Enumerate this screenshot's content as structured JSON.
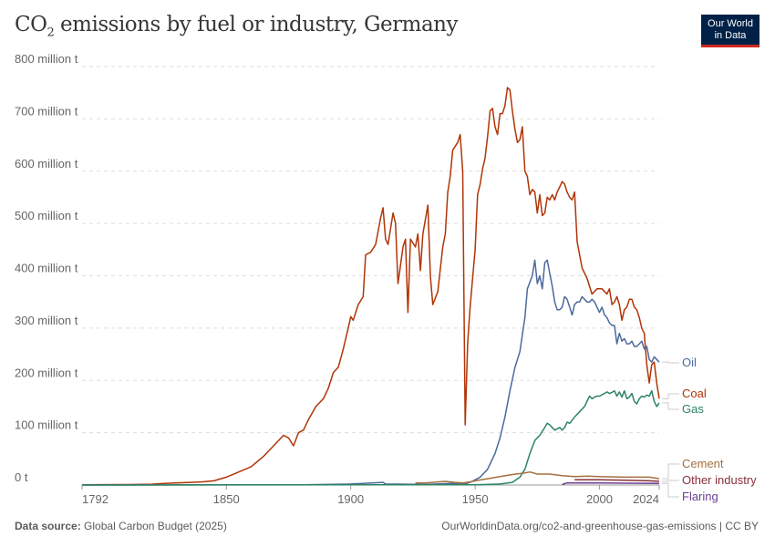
{
  "title": {
    "main": "CO",
    "sub": "2",
    "rest": " emissions by fuel or industry, Germany"
  },
  "logo": {
    "line1": "Our World",
    "line2": "in Data"
  },
  "footer": {
    "source_label": "Data source:",
    "source": "Global Carbon Budget (2025)",
    "url": "OurWorldinData.org/co2-and-greenhouse-gas-emissions | CC BY"
  },
  "chart_data": {
    "type": "line",
    "title": "CO₂ emissions by fuel or industry, Germany",
    "xlim": [
      1792,
      2024
    ],
    "ylim": [
      0,
      800
    ],
    "x_ticks": [
      1792,
      1850,
      1900,
      1950,
      2000,
      2024
    ],
    "y_ticks": [
      {
        "v": 0,
        "label": "0 t"
      },
      {
        "v": 100,
        "label": "100 million t"
      },
      {
        "v": 200,
        "label": "200 million t"
      },
      {
        "v": 300,
        "label": "300 million t"
      },
      {
        "v": 400,
        "label": "400 million t"
      },
      {
        "v": 500,
        "label": "500 million t"
      },
      {
        "v": 600,
        "label": "600 million t"
      },
      {
        "v": 700,
        "label": "700 million t"
      },
      {
        "v": 800,
        "label": "800 million t"
      }
    ],
    "grid": "horizontal dashed",
    "legend": "right, inline labels",
    "series": [
      {
        "name": "Coal",
        "color": "#b13507",
        "data": [
          [
            1792,
            0.5
          ],
          [
            1810,
            0.8
          ],
          [
            1820,
            1.5
          ],
          [
            1825,
            3
          ],
          [
            1830,
            4
          ],
          [
            1840,
            6
          ],
          [
            1845,
            8
          ],
          [
            1850,
            15
          ],
          [
            1855,
            25
          ],
          [
            1860,
            35
          ],
          [
            1865,
            55
          ],
          [
            1870,
            80
          ],
          [
            1873,
            95
          ],
          [
            1875,
            90
          ],
          [
            1877,
            75
          ],
          [
            1879,
            100
          ],
          [
            1881,
            105
          ],
          [
            1883,
            125
          ],
          [
            1886,
            150
          ],
          [
            1889,
            165
          ],
          [
            1891,
            185
          ],
          [
            1893,
            215
          ],
          [
            1895,
            225
          ],
          [
            1897,
            260
          ],
          [
            1899,
            300
          ],
          [
            1900,
            322
          ],
          [
            1901,
            315
          ],
          [
            1903,
            345
          ],
          [
            1905,
            360
          ],
          [
            1906,
            440
          ],
          [
            1908,
            445
          ],
          [
            1910,
            460
          ],
          [
            1912,
            510
          ],
          [
            1913,
            530
          ],
          [
            1914,
            470
          ],
          [
            1915,
            460
          ],
          [
            1917,
            520
          ],
          [
            1918,
            500
          ],
          [
            1919,
            385
          ],
          [
            1921,
            455
          ],
          [
            1922,
            470
          ],
          [
            1923,
            330
          ],
          [
            1924,
            470
          ],
          [
            1926,
            455
          ],
          [
            1927,
            480
          ],
          [
            1928,
            410
          ],
          [
            1929,
            480
          ],
          [
            1931,
            535
          ],
          [
            1932,
            400
          ],
          [
            1933,
            345
          ],
          [
            1935,
            370
          ],
          [
            1937,
            455
          ],
          [
            1938,
            480
          ],
          [
            1939,
            560
          ],
          [
            1940,
            590
          ],
          [
            1941,
            640
          ],
          [
            1943,
            655
          ],
          [
            1944,
            670
          ],
          [
            1945,
            600
          ],
          [
            1946,
            115
          ],
          [
            1947,
            270
          ],
          [
            1948,
            340
          ],
          [
            1950,
            450
          ],
          [
            1951,
            555
          ],
          [
            1952,
            575
          ],
          [
            1953,
            605
          ],
          [
            1954,
            625
          ],
          [
            1955,
            665
          ],
          [
            1956,
            715
          ],
          [
            1957,
            720
          ],
          [
            1958,
            685
          ],
          [
            1959,
            670
          ],
          [
            1960,
            710
          ],
          [
            1961,
            710
          ],
          [
            1962,
            725
          ],
          [
            1963,
            760
          ],
          [
            1964,
            755
          ],
          [
            1965,
            715
          ],
          [
            1966,
            680
          ],
          [
            1967,
            655
          ],
          [
            1968,
            660
          ],
          [
            1969,
            685
          ],
          [
            1970,
            600
          ],
          [
            1971,
            590
          ],
          [
            1972,
            555
          ],
          [
            1973,
            565
          ],
          [
            1974,
            560
          ],
          [
            1975,
            520
          ],
          [
            1976,
            555
          ],
          [
            1977,
            515
          ],
          [
            1978,
            520
          ],
          [
            1979,
            550
          ],
          [
            1980,
            545
          ],
          [
            1981,
            555
          ],
          [
            1982,
            545
          ],
          [
            1983,
            560
          ],
          [
            1984,
            570
          ],
          [
            1985,
            580
          ],
          [
            1986,
            575
          ],
          [
            1987,
            560
          ],
          [
            1988,
            550
          ],
          [
            1989,
            545
          ],
          [
            1990,
            560
          ],
          [
            1991,
            465
          ],
          [
            1992,
            440
          ],
          [
            1993,
            415
          ],
          [
            1994,
            405
          ],
          [
            1995,
            395
          ],
          [
            1996,
            380
          ],
          [
            1997,
            365
          ],
          [
            1998,
            370
          ],
          [
            1999,
            375
          ],
          [
            2000,
            375
          ],
          [
            2001,
            375
          ],
          [
            2002,
            370
          ],
          [
            2003,
            365
          ],
          [
            2004,
            375
          ],
          [
            2005,
            345
          ],
          [
            2006,
            350
          ],
          [
            2007,
            360
          ],
          [
            2008,
            345
          ],
          [
            2009,
            315
          ],
          [
            2010,
            335
          ],
          [
            2011,
            340
          ],
          [
            2012,
            355
          ],
          [
            2013,
            355
          ],
          [
            2014,
            340
          ],
          [
            2015,
            335
          ],
          [
            2016,
            320
          ],
          [
            2017,
            300
          ],
          [
            2018,
            290
          ],
          [
            2019,
            230
          ],
          [
            2020,
            195
          ],
          [
            2021,
            230
          ],
          [
            2022,
            235
          ],
          [
            2023,
            195
          ],
          [
            2024,
            165
          ]
        ]
      },
      {
        "name": "Oil",
        "color": "#4c6a9c",
        "data": [
          [
            1792,
            0
          ],
          [
            1880,
            0.5
          ],
          [
            1900,
            2
          ],
          [
            1905,
            3
          ],
          [
            1913,
            5
          ],
          [
            1914,
            2
          ],
          [
            1930,
            1
          ],
          [
            1940,
            3
          ],
          [
            1946,
            2
          ],
          [
            1948,
            5
          ],
          [
            1950,
            10
          ],
          [
            1952,
            15
          ],
          [
            1955,
            30
          ],
          [
            1958,
            60
          ],
          [
            1960,
            90
          ],
          [
            1962,
            130
          ],
          [
            1964,
            180
          ],
          [
            1966,
            225
          ],
          [
            1968,
            255
          ],
          [
            1970,
            320
          ],
          [
            1971,
            375
          ],
          [
            1973,
            400
          ],
          [
            1974,
            430
          ],
          [
            1975,
            385
          ],
          [
            1976,
            400
          ],
          [
            1977,
            375
          ],
          [
            1978,
            425
          ],
          [
            1979,
            430
          ],
          [
            1980,
            405
          ],
          [
            1981,
            380
          ],
          [
            1982,
            350
          ],
          [
            1983,
            335
          ],
          [
            1984,
            335
          ],
          [
            1985,
            340
          ],
          [
            1986,
            360
          ],
          [
            1987,
            355
          ],
          [
            1988,
            340
          ],
          [
            1989,
            325
          ],
          [
            1990,
            345
          ],
          [
            1991,
            350
          ],
          [
            1992,
            350
          ],
          [
            1993,
            360
          ],
          [
            1994,
            355
          ],
          [
            1995,
            350
          ],
          [
            1996,
            350
          ],
          [
            1997,
            355
          ],
          [
            1998,
            350
          ],
          [
            1999,
            340
          ],
          [
            2000,
            330
          ],
          [
            2001,
            340
          ],
          [
            2002,
            325
          ],
          [
            2003,
            320
          ],
          [
            2004,
            310
          ],
          [
            2005,
            305
          ],
          [
            2006,
            305
          ],
          [
            2007,
            270
          ],
          [
            2008,
            290
          ],
          [
            2009,
            275
          ],
          [
            2010,
            280
          ],
          [
            2011,
            270
          ],
          [
            2012,
            270
          ],
          [
            2013,
            275
          ],
          [
            2014,
            265
          ],
          [
            2015,
            265
          ],
          [
            2016,
            270
          ],
          [
            2017,
            275
          ],
          [
            2018,
            260
          ],
          [
            2019,
            265
          ],
          [
            2020,
            240
          ],
          [
            2021,
            235
          ],
          [
            2022,
            245
          ],
          [
            2023,
            240
          ],
          [
            2024,
            235
          ]
        ]
      },
      {
        "name": "Gas",
        "color": "#2c8465",
        "data": [
          [
            1792,
            0
          ],
          [
            1950,
            0.5
          ],
          [
            1955,
            1
          ],
          [
            1960,
            2
          ],
          [
            1965,
            5
          ],
          [
            1968,
            15
          ],
          [
            1970,
            30
          ],
          [
            1972,
            60
          ],
          [
            1974,
            85
          ],
          [
            1976,
            95
          ],
          [
            1978,
            110
          ],
          [
            1979,
            118
          ],
          [
            1980,
            115
          ],
          [
            1982,
            105
          ],
          [
            1984,
            110
          ],
          [
            1985,
            105
          ],
          [
            1986,
            110
          ],
          [
            1987,
            120
          ],
          [
            1988,
            118
          ],
          [
            1990,
            130
          ],
          [
            1992,
            140
          ],
          [
            1994,
            150
          ],
          [
            1996,
            170
          ],
          [
            1997,
            165
          ],
          [
            1998,
            168
          ],
          [
            1999,
            170
          ],
          [
            2000,
            170
          ],
          [
            2002,
            175
          ],
          [
            2003,
            178
          ],
          [
            2004,
            175
          ],
          [
            2005,
            177
          ],
          [
            2006,
            180
          ],
          [
            2007,
            170
          ],
          [
            2008,
            178
          ],
          [
            2009,
            168
          ],
          [
            2010,
            180
          ],
          [
            2011,
            165
          ],
          [
            2012,
            168
          ],
          [
            2013,
            175
          ],
          [
            2014,
            160
          ],
          [
            2015,
            155
          ],
          [
            2016,
            165
          ],
          [
            2017,
            170
          ],
          [
            2018,
            168
          ],
          [
            2019,
            172
          ],
          [
            2020,
            170
          ],
          [
            2021,
            180
          ],
          [
            2022,
            160
          ],
          [
            2023,
            150
          ],
          [
            2024,
            157
          ]
        ]
      },
      {
        "name": "Cement",
        "color": "#a2703f",
        "data": [
          [
            1926,
            4
          ],
          [
            1930,
            4
          ],
          [
            1935,
            6
          ],
          [
            1938,
            7
          ],
          [
            1942,
            5
          ],
          [
            1945,
            4
          ],
          [
            1948,
            6
          ],
          [
            1950,
            8
          ],
          [
            1955,
            12
          ],
          [
            1960,
            16
          ],
          [
            1965,
            20
          ],
          [
            1970,
            23
          ],
          [
            1972,
            25
          ],
          [
            1975,
            21
          ],
          [
            1980,
            21
          ],
          [
            1985,
            18
          ],
          [
            1990,
            16
          ],
          [
            1995,
            17
          ],
          [
            2000,
            16
          ],
          [
            2010,
            15
          ],
          [
            2020,
            15
          ],
          [
            2024,
            12
          ]
        ]
      },
      {
        "name": "Other industry",
        "color": "#883039",
        "data": [
          [
            1990,
            10
          ],
          [
            2000,
            10
          ],
          [
            2010,
            9
          ],
          [
            2020,
            8
          ],
          [
            2024,
            7
          ]
        ]
      },
      {
        "name": "Flaring",
        "color": "#6d3e91",
        "data": [
          [
            1985,
            1
          ],
          [
            1987,
            4
          ],
          [
            2000,
            4
          ],
          [
            2010,
            3.5
          ],
          [
            2024,
            3
          ]
        ]
      }
    ]
  }
}
